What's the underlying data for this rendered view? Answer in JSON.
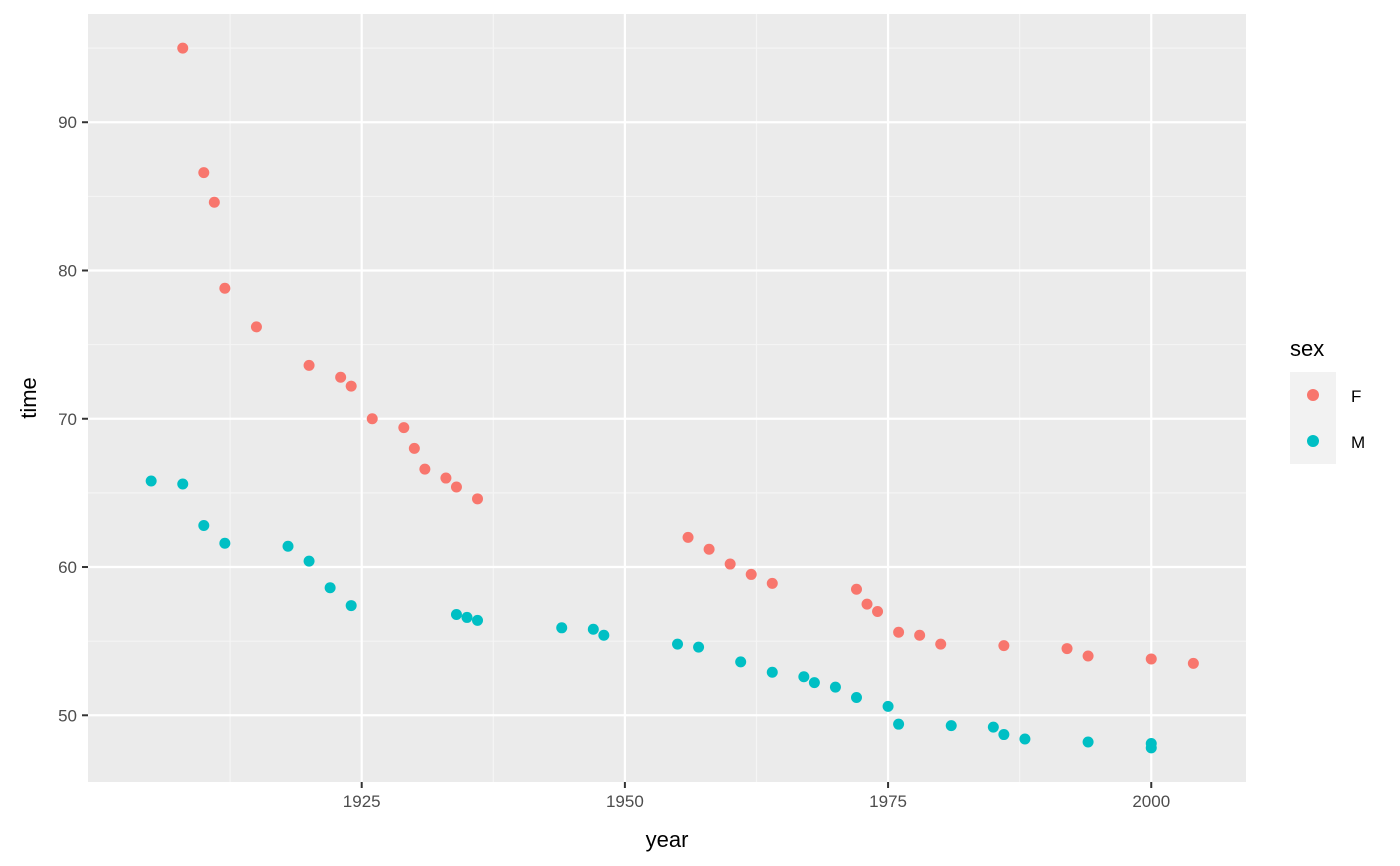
{
  "chart_data": {
    "type": "scatter",
    "xlabel": "year",
    "ylabel": "time",
    "xlim": [
      1899,
      2009
    ],
    "ylim": [
      45.5,
      97.3
    ],
    "x_ticks": [
      1925,
      1950,
      1975,
      2000
    ],
    "y_ticks": [
      50,
      60,
      70,
      80,
      90
    ],
    "grid": true,
    "legend": {
      "title": "sex",
      "position": "right"
    },
    "series": [
      {
        "name": "F",
        "color": "#F8766D",
        "points": [
          [
            1908,
            95.0
          ],
          [
            1910,
            86.6
          ],
          [
            1911,
            84.6
          ],
          [
            1912,
            78.8
          ],
          [
            1915,
            76.2
          ],
          [
            1920,
            73.6
          ],
          [
            1923,
            72.8
          ],
          [
            1924,
            72.2
          ],
          [
            1926,
            70.0
          ],
          [
            1929,
            69.4
          ],
          [
            1930,
            68.0
          ],
          [
            1931,
            66.6
          ],
          [
            1933,
            66.0
          ],
          [
            1934,
            65.4
          ],
          [
            1936,
            64.6
          ],
          [
            1956,
            62.0
          ],
          [
            1958,
            61.2
          ],
          [
            1960,
            60.2
          ],
          [
            1962,
            59.5
          ],
          [
            1964,
            58.9
          ],
          [
            1972,
            58.5
          ],
          [
            1973,
            57.5
          ],
          [
            1974,
            57.0
          ],
          [
            1976,
            55.6
          ],
          [
            1978,
            55.4
          ],
          [
            1980,
            54.8
          ],
          [
            1986,
            54.7
          ],
          [
            1992,
            54.5
          ],
          [
            1994,
            54.0
          ],
          [
            2000,
            53.8
          ],
          [
            2004,
            53.5
          ]
        ]
      },
      {
        "name": "M",
        "color": "#00BFC4",
        "points": [
          [
            1905,
            65.8
          ],
          [
            1908,
            65.6
          ],
          [
            1910,
            62.8
          ],
          [
            1912,
            61.6
          ],
          [
            1918,
            61.4
          ],
          [
            1920,
            60.4
          ],
          [
            1922,
            58.6
          ],
          [
            1924,
            57.4
          ],
          [
            1934,
            56.8
          ],
          [
            1935,
            56.6
          ],
          [
            1936,
            56.4
          ],
          [
            1944,
            55.9
          ],
          [
            1947,
            55.8
          ],
          [
            1948,
            55.4
          ],
          [
            1955,
            54.8
          ],
          [
            1957,
            54.6
          ],
          [
            1961,
            53.6
          ],
          [
            1964,
            52.9
          ],
          [
            1967,
            52.6
          ],
          [
            1968,
            52.2
          ],
          [
            1970,
            51.9
          ],
          [
            1972,
            51.2
          ],
          [
            1975,
            50.6
          ],
          [
            1976,
            49.4
          ],
          [
            1981,
            49.3
          ],
          [
            1985,
            49.2
          ],
          [
            1986,
            48.7
          ],
          [
            1988,
            48.4
          ],
          [
            1994,
            48.2
          ],
          [
            2000,
            48.1
          ],
          [
            2000,
            47.8
          ]
        ]
      }
    ]
  },
  "colors": {
    "panel_background": "#EBEBEB",
    "grid_major": "#FFFFFF",
    "grid_minor": "#F5F5F5",
    "tick_mark": "#333333",
    "legend_key_background": "#F2F2F2"
  }
}
